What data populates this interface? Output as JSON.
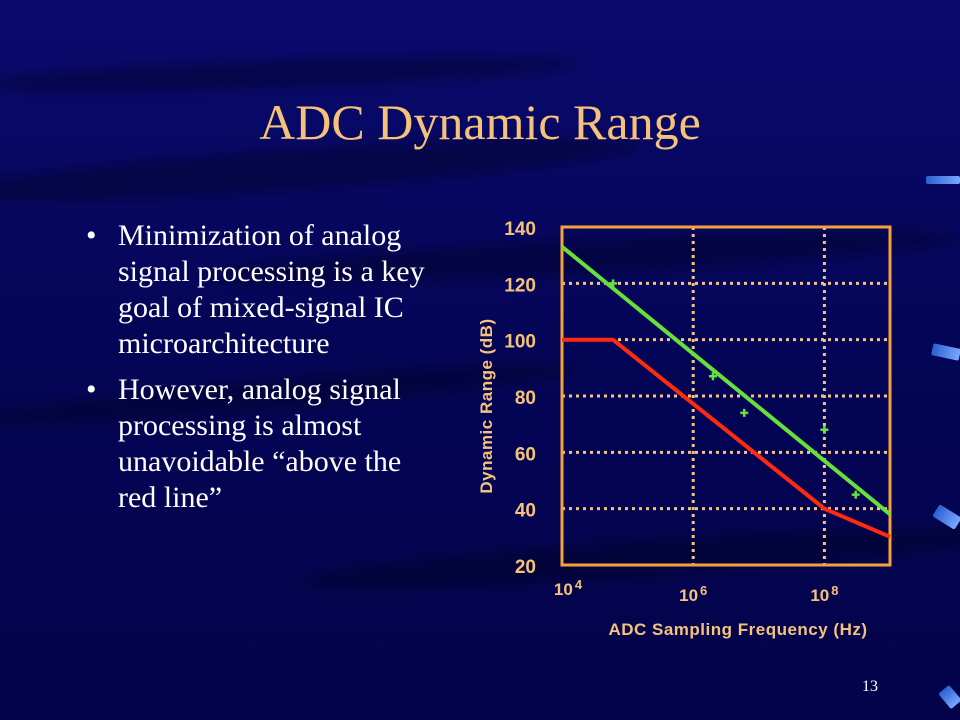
{
  "slide": {
    "title": "ADC Dynamic Range",
    "bullets": [
      "Minimization of analog signal processing is a key goal of mixed-signal IC microarchitecture",
      "However, analog signal processing is almost unavoidable “above the red line”"
    ],
    "page_number": "13"
  },
  "colors": {
    "background": "#06065a",
    "title": "#f5c27a",
    "axis": "#f5a23a",
    "grid": "#f5c27a",
    "green_series": "#66e03a",
    "red_series": "#ff2a10",
    "markers": "#66e03a"
  },
  "chart_data": {
    "type": "line",
    "xlabel": "ADC Sampling Frequency (Hz)",
    "ylabel": "Dynamic Range (dB)",
    "x_scale": "log",
    "xlim": [
      10000,
      1000000000
    ],
    "ylim": [
      20,
      140
    ],
    "yticks": [
      "20",
      "40",
      "60",
      "80",
      "100",
      "120",
      "140"
    ],
    "xticks": [
      {
        "value": 10000,
        "base": "10",
        "exp": "4"
      },
      {
        "value": 1000000,
        "base": "10",
        "exp": "6"
      },
      {
        "value": 100000000,
        "base": "10",
        "exp": "8"
      }
    ],
    "grid": true,
    "series": [
      {
        "color": "#66e03a",
        "x": [
          10000,
          1000000000
        ],
        "y": [
          133,
          38
        ]
      },
      {
        "color": "#ff2a10",
        "x": [
          10000,
          60000,
          100000000,
          1000000000
        ],
        "y": [
          100,
          100,
          40,
          30
        ]
      },
      {
        "type": "scatter",
        "marker": "+",
        "color": "#66e03a",
        "x": [
          60000,
          2000000,
          6000000,
          100000000,
          300000000
        ],
        "y": [
          120,
          87,
          74,
          68,
          45
        ]
      }
    ]
  }
}
